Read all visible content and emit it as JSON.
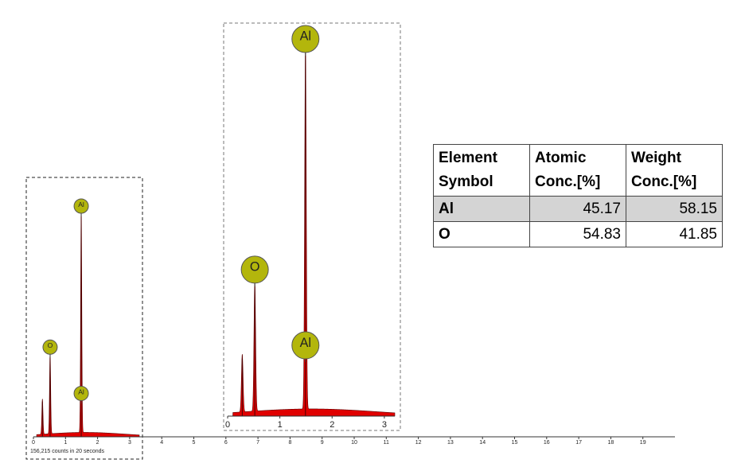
{
  "chart_data": {
    "type": "spectrum",
    "x": [
      0.28,
      0.52,
      1.49
    ],
    "values": [
      16,
      36,
      100
    ],
    "color": "#e00000",
    "ylim": [
      0,
      100
    ],
    "xlim": [
      0,
      20
    ],
    "xticks": [
      0,
      1,
      2,
      3,
      4,
      5,
      6,
      7,
      8,
      9,
      10,
      11,
      12,
      13,
      14,
      15,
      16,
      17,
      18,
      19
    ],
    "markers": [
      {
        "label": "O",
        "x": 0.52,
        "y": 36
      },
      {
        "label": "Al",
        "x": 1.49,
        "y": 100
      },
      {
        "label": "Al",
        "x": 1.49,
        "y": 15
      }
    ],
    "marker_color": "#b3b60c",
    "note": "156,215 counts in 20 seconds",
    "inset": {
      "xlim": [
        0,
        3.2
      ],
      "xticks": [
        0,
        1,
        2,
        3
      ]
    }
  },
  "table": {
    "header": [
      "Element Symbol",
      "Atomic Conc.[%]",
      "Weight Conc.[%]"
    ],
    "rows": [
      [
        "Al",
        45.17,
        58.15
      ],
      [
        "O",
        54.83,
        41.85
      ]
    ]
  }
}
